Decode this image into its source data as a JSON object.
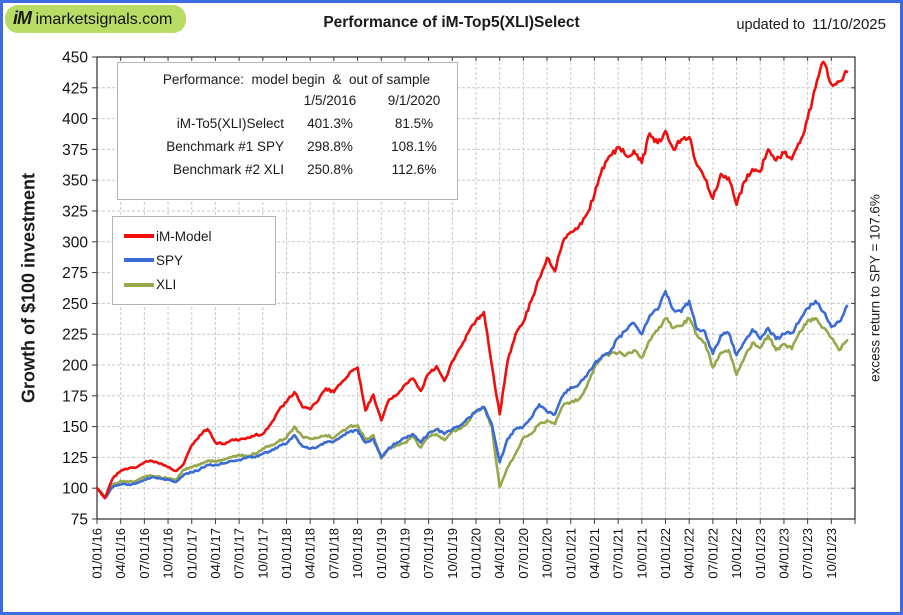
{
  "page": {
    "border_color": "#3c6ce0",
    "background": "#ffffff"
  },
  "header": {
    "logo_badge": {
      "im": "iM",
      "site": "imarketsignals.com",
      "bg_color": "#b9dc64"
    },
    "title": "Performance of iM-Top5(XLI)Select",
    "updated_label": "updated to",
    "updated_date": "11/10/2025"
  },
  "perf_table": {
    "heading": "Performance:  model begin  &  out of sample",
    "col_headers": [
      "1/5/2016",
      "9/1/2020"
    ],
    "rows": [
      {
        "label": "iM-To5(XLI)Select",
        "values": [
          "401.3%",
          "81.5%"
        ]
      },
      {
        "label": "Benchmark #1 SPY",
        "values": [
          "298.8%",
          "108.1%"
        ]
      },
      {
        "label": "Benchmark #2 XLI",
        "values": [
          "250.8%",
          "112.6%"
        ]
      }
    ]
  },
  "y_axis": {
    "title": "Growth of $100 investment",
    "ticks": [
      75,
      100,
      125,
      150,
      175,
      200,
      225,
      250,
      275,
      300,
      325,
      350,
      375,
      400,
      425,
      450
    ]
  },
  "annotation_right": "excess return to SPY = 107.6%",
  "chart_data": {
    "type": "line",
    "title": "Performance of iM-Top5(XLI)Select",
    "x_start": "01/2016",
    "x_end": "12/2023",
    "x_interval": "monthly",
    "x_tick_labels": [
      "01/01/16",
      "04/01/16",
      "07/01/16",
      "10/01/16",
      "01/01/17",
      "04/01/17",
      "07/01/17",
      "10/01/17",
      "01/01/18",
      "04/01/18",
      "07/01/18",
      "10/01/18",
      "01/01/19",
      "04/01/19",
      "07/01/19",
      "10/01/19",
      "01/01/20",
      "04/01/20",
      "07/01/20",
      "10/01/20",
      "01/01/21",
      "04/01/21",
      "07/01/21",
      "10/01/21",
      "01/01/22",
      "04/01/22",
      "07/01/22",
      "10/01/22",
      "01/01/23",
      "04/01/23",
      "07/01/23",
      "10/01/23"
    ],
    "ylim": [
      75,
      450
    ],
    "y_tick_step": 25,
    "grid": true,
    "grid_style": "dashed",
    "legend_position": "upper-left-inside",
    "series": [
      {
        "name": "iM-Model",
        "color": "#f20d0d",
        "values": [
          100,
          92,
          108,
          114,
          116,
          117,
          121,
          122,
          120,
          117,
          114,
          120,
          135,
          143,
          148,
          137,
          136,
          139,
          139,
          141,
          143,
          144,
          152,
          163,
          170,
          178,
          166,
          164,
          171,
          181,
          178,
          186,
          194,
          198,
          163,
          176,
          155,
          172,
          176,
          184,
          189,
          179,
          193,
          199,
          187,
          203,
          214,
          226,
          236,
          243,
          200,
          160,
          203,
          225,
          235,
          252,
          270,
          287,
          276,
          300,
          308,
          312,
          322,
          338,
          360,
          370,
          377,
          370,
          374,
          364,
          388,
          380,
          390,
          375,
          383,
          385,
          362,
          351,
          335,
          355,
          352,
          330,
          349,
          359,
          357,
          375,
          366,
          372,
          367,
          380,
          400,
          425,
          446,
          428,
          430,
          438
        ]
      },
      {
        "name": "SPY",
        "color": "#3b6bd5",
        "values": [
          100,
          92,
          101,
          103,
          103,
          104,
          107,
          109,
          108,
          107,
          105,
          111,
          113,
          115,
          119,
          119,
          120,
          122,
          123,
          125,
          125,
          128,
          130,
          134,
          136,
          143,
          134,
          132,
          134,
          137,
          138,
          142,
          146,
          147,
          137,
          140,
          125,
          133,
          137,
          141,
          144,
          137,
          145,
          148,
          144,
          148,
          151,
          157,
          162,
          166,
          152,
          121,
          140,
          148,
          150,
          157,
          168,
          162,
          160,
          175,
          182,
          184,
          191,
          201,
          207,
          211,
          222,
          228,
          234,
          225,
          240,
          245,
          260,
          245,
          243,
          252,
          229,
          227,
          209,
          224,
          226,
          208,
          219,
          229,
          221,
          230,
          221,
          225,
          226,
          236,
          246,
          252,
          243,
          231,
          235,
          248
        ]
      },
      {
        "name": "XLI",
        "color": "#96a84c",
        "values": [
          100,
          93,
          103,
          106,
          105,
          106,
          109,
          110,
          109,
          108,
          107,
          115,
          117,
          119,
          122,
          122,
          123,
          125,
          127,
          126,
          128,
          132,
          135,
          138,
          141,
          150,
          142,
          140,
          141,
          143,
          141,
          146,
          150,
          151,
          139,
          143,
          124,
          132,
          135,
          137,
          142,
          133,
          142,
          144,
          139,
          146,
          148,
          154,
          163,
          165,
          150,
          101,
          117,
          128,
          141,
          144,
          152,
          155,
          152,
          167,
          170,
          172,
          182,
          198,
          208,
          209,
          210,
          208,
          212,
          206,
          220,
          228,
          238,
          230,
          232,
          238,
          224,
          218,
          198,
          210,
          212,
          192,
          206,
          218,
          214,
          224,
          212,
          217,
          213,
          227,
          236,
          238,
          230,
          222,
          212,
          220
        ]
      }
    ]
  }
}
